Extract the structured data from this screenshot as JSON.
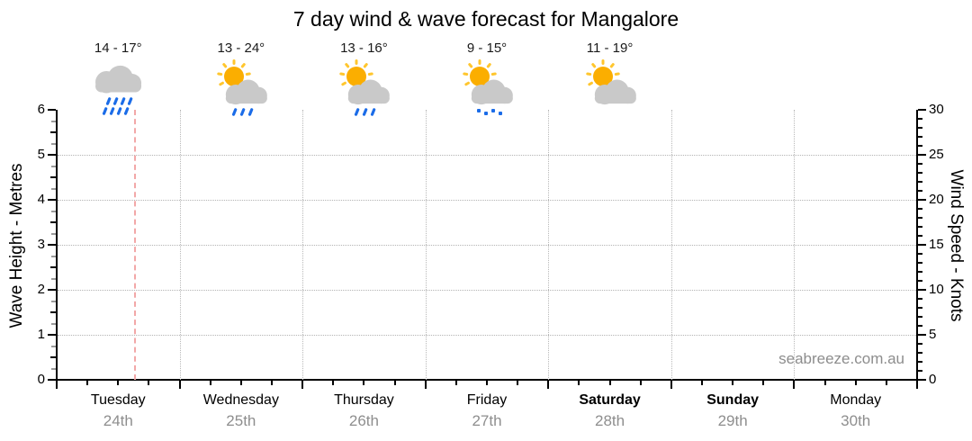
{
  "title": "7 day wind & wave forecast for Mangalore",
  "watermark": "seabreeze.com.au",
  "chart_data": {
    "type": "line",
    "title": "7 day wind & wave forecast for Mangalore",
    "location": "Mangalore",
    "series": [],
    "note": "plot area is empty - no wave or wind data curves are drawn, only grid, axes, day columns and a dashed current-time marker",
    "grid": "dotted",
    "left_axis": {
      "label": "Wave Height - Metres",
      "min": 0,
      "max": 6,
      "major_step": 1,
      "minor_step": 0.25,
      "tick_labels": [
        "0",
        "1",
        "2",
        "3",
        "4",
        "5",
        "6"
      ]
    },
    "right_axis": {
      "label": "Wind Speed - Knots",
      "min": 0,
      "max": 30,
      "major_step": 5,
      "minor_step": 1,
      "tick_labels": [
        "0",
        "5",
        "10",
        "15",
        "20",
        "25",
        "30"
      ]
    },
    "days": [
      {
        "name": "Tuesday",
        "date": "24th",
        "temp": "14 - 17°",
        "icon": "rain-cloud-icon",
        "weekend": false
      },
      {
        "name": "Wednesday",
        "date": "25th",
        "temp": "13 - 24°",
        "icon": "sun-cloud-rain-icon",
        "weekend": false
      },
      {
        "name": "Thursday",
        "date": "26th",
        "temp": "13 - 16°",
        "icon": "sun-cloud-rain-icon",
        "weekend": false
      },
      {
        "name": "Friday",
        "date": "27th",
        "temp": "9 - 15°",
        "icon": "sun-cloud-drizzle-icon",
        "weekend": false
      },
      {
        "name": "Saturday",
        "date": "28th",
        "temp": "11 - 19°",
        "icon": "sun-cloud-icon",
        "weekend": true
      },
      {
        "name": "Sunday",
        "date": "29th",
        "temp": "",
        "icon": "",
        "weekend": true
      },
      {
        "name": "Monday",
        "date": "30th",
        "temp": "",
        "icon": "",
        "weekend": false
      }
    ],
    "now_marker": {
      "day": "Tuesday",
      "day_index": 0,
      "fraction": 0.63,
      "style": "dashed"
    },
    "colors": {
      "sun": "#fbae00",
      "sun_rays": "#ffc62e",
      "cloud": "#c9c9c9",
      "rain": "#1b6ce8",
      "grid": "#b5b5b5",
      "axis": "#000000",
      "day_text": "#000000",
      "date_text": "#8e8e8e",
      "temp_text": "#1a1a1a",
      "watermark_text": "#8d8d8d",
      "now_line": "#f2a8a8"
    }
  }
}
